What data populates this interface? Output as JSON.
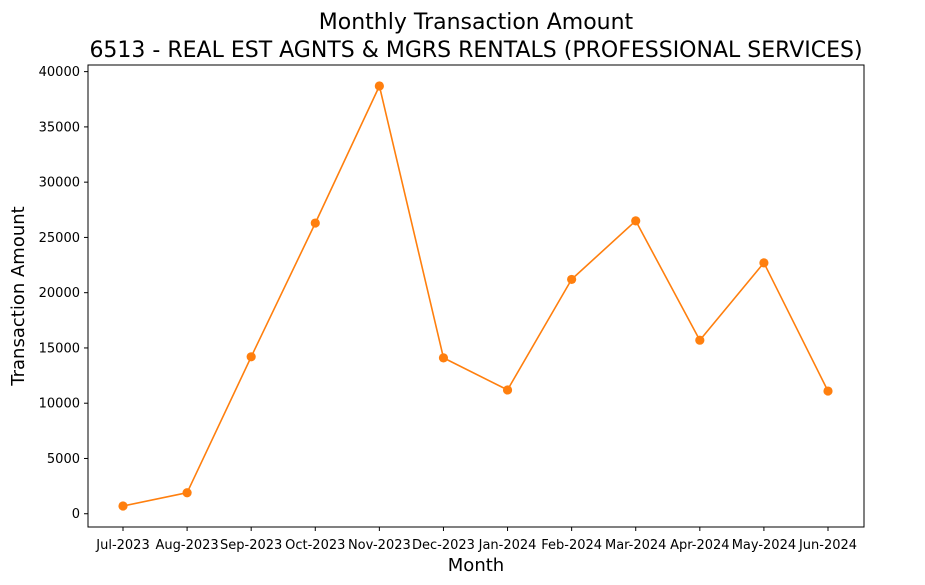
{
  "chart_data": {
    "type": "line",
    "title": "Monthly Transaction Amount",
    "subtitle": "6513 - REAL EST AGNTS & MGRS RENTALS (PROFESSIONAL SERVICES)",
    "xlabel": "Month",
    "ylabel": "Transaction Amount",
    "categories": [
      "Jul-2023",
      "Aug-2023",
      "Sep-2023",
      "Oct-2023",
      "Nov-2023",
      "Dec-2023",
      "Jan-2024",
      "Feb-2024",
      "Mar-2024",
      "Apr-2024",
      "May-2024",
      "Jun-2024"
    ],
    "yticks": [
      "0",
      "5000",
      "10000",
      "15000",
      "20000",
      "25000",
      "30000",
      "35000",
      "40000"
    ],
    "ylim": [
      -1200,
      40600
    ],
    "grid": false,
    "series": [
      {
        "color": "#ff7f0e",
        "marker": "circle",
        "values": [
          700,
          1900,
          14200,
          26300,
          38700,
          14100,
          11200,
          21200,
          26500,
          15700,
          22700,
          11100
        ]
      }
    ]
  }
}
